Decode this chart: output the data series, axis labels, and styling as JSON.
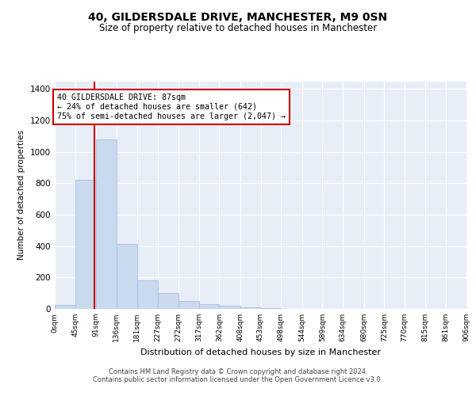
{
  "title": "40, GILDERSDALE DRIVE, MANCHESTER, M9 0SN",
  "subtitle": "Size of property relative to detached houses in Manchester",
  "xlabel": "Distribution of detached houses by size in Manchester",
  "ylabel": "Number of detached properties",
  "bar_color": "#c9d9ee",
  "bar_edgecolor": "#a8c0de",
  "vline_x": 87,
  "vline_color": "#cc0000",
  "annotation_lines": [
    "40 GILDERSDALE DRIVE: 87sqm",
    "← 24% of detached houses are smaller (642)",
    "75% of semi-detached houses are larger (2,047) →"
  ],
  "annotation_box_color": "white",
  "annotation_box_edgecolor": "#cc0000",
  "bin_edges": [
    0,
    45,
    91,
    136,
    181,
    227,
    272,
    317,
    362,
    408,
    453,
    498,
    544,
    589,
    634,
    680,
    725,
    770,
    815,
    861,
    906
  ],
  "bar_heights": [
    25,
    820,
    1080,
    415,
    180,
    100,
    50,
    28,
    20,
    12,
    5,
    2,
    1,
    0,
    0,
    0,
    0,
    0,
    0,
    0
  ],
  "ylim": [
    0,
    1450
  ],
  "yticks": [
    0,
    200,
    400,
    600,
    800,
    1000,
    1200,
    1400
  ],
  "footer1": "Contains HM Land Registry data © Crown copyright and database right 2024.",
  "footer2": "Contains public sector information licensed under the Open Government Licence v3.0.",
  "plot_bg_color": "#e8eef8",
  "figure_bg_color": "#ffffff",
  "grid_color": "#ffffff"
}
